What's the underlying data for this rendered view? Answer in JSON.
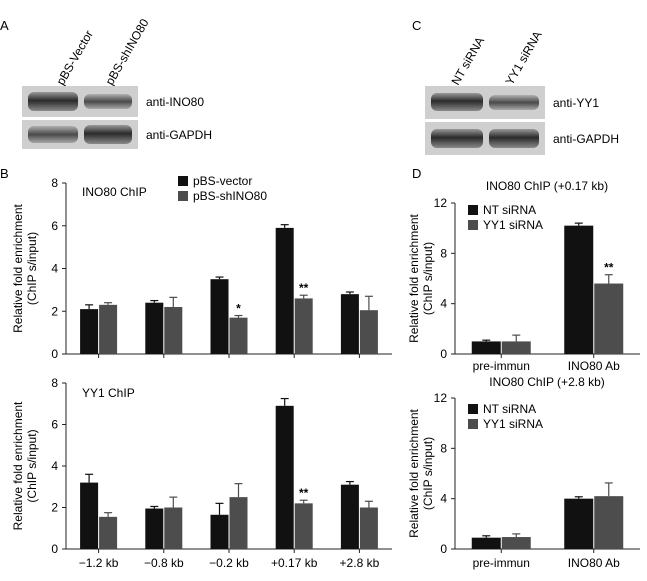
{
  "panel_labels": {
    "a": "A",
    "b": "B",
    "c": "C",
    "d": "D"
  },
  "blot_a": {
    "lanes": [
      "pBS-Vector",
      "pBS-shINO80"
    ],
    "bands": [
      "anti-INO80",
      "anti-GAPDH"
    ]
  },
  "blot_c": {
    "lanes": [
      "NT siRNA",
      "YY1 siRNA"
    ],
    "bands": [
      "anti-YY1",
      "anti-GAPDH"
    ]
  },
  "colors": {
    "series1": "#111111",
    "series2": "#4d4d4d",
    "axis": "#222222"
  },
  "chart_data": [
    {
      "id": "ino80_chip",
      "type": "bar",
      "title": "INO80 ChIP",
      "ylabel": [
        "Relative fold enrichment",
        "(ChIP s/input)"
      ],
      "ylim": [
        0,
        8
      ],
      "yticks": [
        0,
        2,
        4,
        6,
        8
      ],
      "categories": [
        "-1.2 kb",
        "-0.8 kb",
        "-0.2 kb",
        "+0.17 kb",
        "+2.8 kb"
      ],
      "show_categories": false,
      "series": [
        {
          "name": "pBS-vector",
          "values": [
            2.1,
            2.4,
            3.5,
            5.9,
            2.8
          ],
          "errors": [
            0.2,
            0.1,
            0.1,
            0.15,
            0.1
          ]
        },
        {
          "name": "pBS-shINO80",
          "values": [
            2.3,
            2.2,
            1.7,
            2.6,
            2.05
          ],
          "errors": [
            0.1,
            0.45,
            0.1,
            0.15,
            0.65
          ]
        }
      ],
      "annotations": [
        {
          "category": 2,
          "series": 1,
          "text": "*"
        },
        {
          "category": 3,
          "series": 1,
          "text": "**"
        }
      ],
      "legend": "top-right"
    },
    {
      "id": "yy1_chip",
      "type": "bar",
      "title": "YY1 ChIP",
      "ylabel": [
        "Relative fold enrichment",
        "(ChIP s/input)"
      ],
      "ylim": [
        0,
        8
      ],
      "yticks": [
        0,
        2,
        4,
        6,
        8
      ],
      "categories": [
        "−1.2 kb",
        "−0.8 kb",
        "−0.2 kb",
        "+0.17 kb",
        "+2.8 kb"
      ],
      "show_categories": true,
      "series": [
        {
          "values": [
            3.2,
            1.95,
            1.65,
            6.9,
            3.1
          ],
          "errors": [
            0.4,
            0.1,
            0.55,
            0.35,
            0.15
          ]
        },
        {
          "values": [
            1.55,
            2.0,
            2.5,
            2.2,
            2.0
          ],
          "errors": [
            0.2,
            0.5,
            0.65,
            0.15,
            0.3
          ]
        }
      ],
      "annotations": [
        {
          "category": 3,
          "series": 1,
          "text": "**"
        }
      ]
    },
    {
      "id": "ino80_chip_017",
      "type": "bar",
      "title": "INO80 ChIP (+0.17 kb)",
      "ylabel": [
        "Relative fold enrichment",
        "(ChIP s/input)"
      ],
      "ylim": [
        0,
        12
      ],
      "yticks": [
        0,
        4,
        8,
        12
      ],
      "categories": [
        "pre-immun",
        "INO80 Ab"
      ],
      "show_categories": true,
      "series": [
        {
          "name": "NT siRNA",
          "values": [
            1.0,
            10.2
          ],
          "errors": [
            0.1,
            0.2
          ]
        },
        {
          "name": "YY1 siRNA",
          "values": [
            1.0,
            5.6
          ],
          "errors": [
            0.5,
            0.7
          ]
        }
      ],
      "annotations": [
        {
          "category": 1,
          "series": 1,
          "text": "**"
        }
      ],
      "legend": "top-left"
    },
    {
      "id": "ino80_chip_28",
      "type": "bar",
      "title": "INO80 ChIP (+2.8 kb)",
      "ylabel": [
        "Relative fold enrichment",
        "(ChIP s/input)"
      ],
      "ylim": [
        0,
        12
      ],
      "yticks": [
        0,
        4,
        8,
        12
      ],
      "categories": [
        "pre-immun",
        "INO80 Ab"
      ],
      "show_categories": true,
      "series": [
        {
          "name": "NT siRNA",
          "values": [
            0.9,
            4.0
          ],
          "errors": [
            0.15,
            0.15
          ]
        },
        {
          "name": "YY1 siRNA",
          "values": [
            0.95,
            4.2
          ],
          "errors": [
            0.25,
            1.05
          ]
        }
      ],
      "annotations": [],
      "legend": "top-left"
    }
  ]
}
